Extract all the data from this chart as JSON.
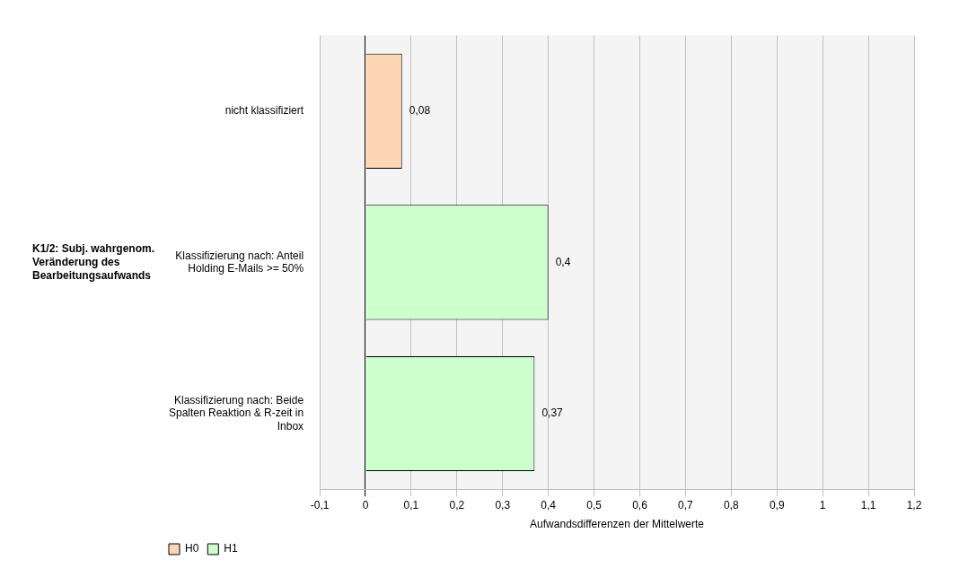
{
  "chart_data": {
    "type": "bar",
    "orientation": "horizontal",
    "ylabel": "K1/2: Subj. wahrgenom. Veränderung des Bearbeitungsaufwands",
    "xlabel": "Aufwandsdifferenzen der Mittelwerte",
    "categories": [
      "nicht klassifiziert",
      "Klassifizierung nach: Anteil Holding E-Mails >= 50%",
      "Klassifizierung nach: Beide Spalten Reaktion & R-zeit in Inbox"
    ],
    "series": [
      {
        "name": "H0",
        "color": "#fcd5b4",
        "values": [
          0.08,
          null,
          null
        ],
        "value_labels": [
          "0,08",
          null,
          null
        ]
      },
      {
        "name": "H1",
        "color": "#ccffcc",
        "values": [
          null,
          0.4,
          0.37
        ],
        "value_labels": [
          null,
          "0,4",
          "0,37"
        ]
      }
    ],
    "xlim": [
      -0.1,
      1.2
    ],
    "xticks": [
      {
        "value": -0.1,
        "label": "-0,1"
      },
      0,
      {
        "value": 0.1,
        "label": "0,1"
      },
      {
        "value": 0.2,
        "label": "0,2"
      },
      {
        "value": 0.3,
        "label": "0,3"
      },
      {
        "value": 0.4,
        "label": "0,4"
      },
      {
        "value": 0.5,
        "label": "0,5"
      },
      {
        "value": 0.6,
        "label": "0,6"
      },
      {
        "value": 0.7,
        "label": "0,7"
      },
      {
        "value": 0.8,
        "label": "0,8"
      },
      {
        "value": 0.9,
        "label": "0,9"
      },
      1,
      {
        "value": 1.1,
        "label": "1,1"
      },
      {
        "value": 1.2,
        "label": "1,2"
      }
    ],
    "grid": "x",
    "legend": "bottom left"
  }
}
